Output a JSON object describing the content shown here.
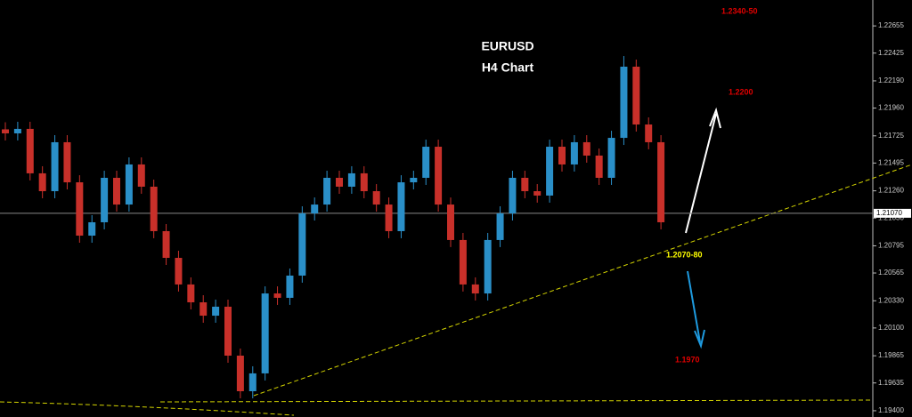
{
  "chart_data": {
    "type": "candlestick",
    "title": "EURUSD",
    "subtitle": "H4 Chart",
    "up_color": "#2a8fc8",
    "down_color": "#c8302a",
    "series": [
      {
        "name": "EURUSD",
        "open": [
          1.2178,
          1.21746,
          1.21784,
          1.21408,
          1.21257,
          1.21671,
          1.21332,
          1.20881,
          1.20994,
          1.2137,
          1.21144,
          1.21483,
          1.21295,
          1.20919,
          1.20693,
          1.20468,
          1.20317,
          1.20204,
          1.2028,
          1.19866,
          1.19565,
          1.19716,
          1.20392,
          1.20355,
          1.20543,
          1.21069,
          1.21144,
          1.2137,
          1.21295,
          1.21408,
          1.21257,
          1.21144,
          1.20919,
          1.21332,
          1.2137,
          1.21633,
          1.21144,
          1.20844,
          1.20468,
          1.20392,
          1.20844,
          1.21069,
          1.2137,
          1.21257,
          1.2122,
          1.21633,
          1.21483,
          1.21671,
          1.21558,
          1.2137,
          1.21708,
          1.2231,
          1.21821,
          1.21671
        ],
        "high": [
          1.2184,
          1.21844,
          1.21844,
          1.21468,
          1.21731,
          1.21731,
          1.21392,
          1.21054,
          1.2143,
          1.2143,
          1.21543,
          1.21543,
          1.21355,
          1.20979,
          1.20753,
          1.20528,
          1.20377,
          1.2034,
          1.2034,
          1.19926,
          1.19776,
          1.20452,
          1.20452,
          1.20603,
          1.21129,
          1.21204,
          1.2143,
          1.2143,
          1.21468,
          1.21468,
          1.21317,
          1.21204,
          1.21392,
          1.2143,
          1.21693,
          1.21693,
          1.21204,
          1.20904,
          1.20528,
          1.20904,
          1.21129,
          1.2143,
          1.2143,
          1.21317,
          1.21693,
          1.21693,
          1.21731,
          1.21731,
          1.21618,
          1.21768,
          1.224,
          1.2237,
          1.21881,
          1.21731
        ],
        "low": [
          1.21686,
          1.21686,
          1.21348,
          1.21197,
          1.21197,
          1.21272,
          1.20821,
          1.20821,
          1.20934,
          1.21084,
          1.21084,
          1.21235,
          1.20859,
          1.20633,
          1.20408,
          1.20257,
          1.20144,
          1.20144,
          1.19806,
          1.19505,
          1.19505,
          1.19656,
          1.20295,
          1.20295,
          1.20483,
          1.21009,
          1.21084,
          1.21235,
          1.21235,
          1.21197,
          1.21084,
          1.20859,
          1.20859,
          1.21272,
          1.2131,
          1.21084,
          1.20784,
          1.20408,
          1.20332,
          1.20332,
          1.20784,
          1.21009,
          1.21197,
          1.2116,
          1.2116,
          1.21423,
          1.21423,
          1.21498,
          1.2131,
          1.2131,
          1.21648,
          1.21761,
          1.21611,
          1.20934
        ],
        "close": [
          1.21746,
          1.21784,
          1.21408,
          1.21257,
          1.21671,
          1.21332,
          1.20881,
          1.20994,
          1.2137,
          1.21144,
          1.21483,
          1.21295,
          1.20919,
          1.20693,
          1.20468,
          1.20317,
          1.20204,
          1.2028,
          1.19866,
          1.19565,
          1.19716,
          1.20392,
          1.20355,
          1.20543,
          1.21069,
          1.21144,
          1.2137,
          1.21295,
          1.21408,
          1.21257,
          1.21144,
          1.20919,
          1.21332,
          1.2137,
          1.21633,
          1.21144,
          1.20844,
          1.20468,
          1.20392,
          1.20844,
          1.21069,
          1.2137,
          1.21257,
          1.2122,
          1.21633,
          1.21483,
          1.21671,
          1.21558,
          1.2137,
          1.21708,
          1.2231,
          1.21821,
          1.21671,
          1.20994
        ]
      }
    ],
    "ylim": [
      1.19347,
      1.22874
    ],
    "yticks": [
      1.22655,
      1.22425,
      {
        "value": 1.2219,
        "label": "1.22190"
      },
      {
        "value": 1.2196,
        "label": "1.21960"
      },
      1.21725,
      1.21495,
      {
        "value": 1.2126,
        "label": "1.21260"
      },
      {
        "value": 1.2103,
        "label": "1.21030"
      },
      1.20795,
      1.20565,
      {
        "value": 1.2033,
        "label": "1.20330"
      },
      {
        "value": 1.201,
        "label": "1.20100"
      },
      1.19865,
      1.19635,
      {
        "value": 1.194,
        "label": "1.19400"
      }
    ],
    "current_price": {
      "value": 1.2107,
      "label": "1.21070"
    },
    "annotations": [
      "1.2340-50",
      "1.2200",
      "1.2070-80",
      "1.1970"
    ]
  }
}
